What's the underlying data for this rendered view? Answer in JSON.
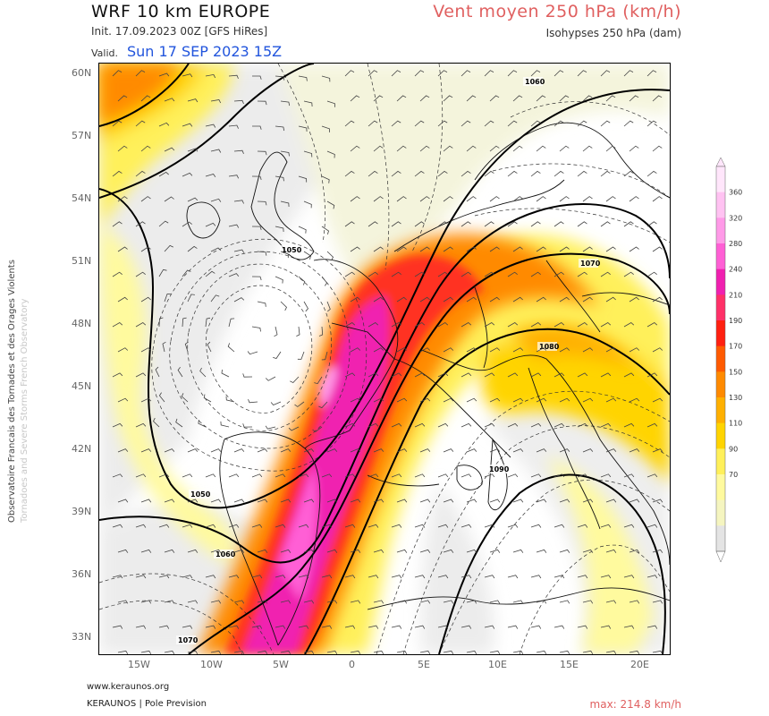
{
  "header": {
    "title": "WRF 10 km EUROPE",
    "init": "Init.   17.09.2023 00Z [GFS HiRes]",
    "valid_label": "Valid.",
    "valid_date": "Sun 17 SEP 2023 15Z",
    "product": "Vent moyen 250 hPa (km/h)",
    "isohypses": "Isohypses 250 hPa (dam)"
  },
  "side_credit": {
    "line1": "Observatoire Francais des Tornades et des Orages Violents",
    "line2": "Tornadoes and Severe Storms French Observatory"
  },
  "axes": {
    "lat_labels": [
      "60N",
      "57N",
      "54N",
      "51N",
      "48N",
      "45N",
      "42N",
      "39N",
      "36N",
      "33N"
    ],
    "lon_labels": [
      "15W",
      "10W",
      "5W",
      "0",
      "5E",
      "10E",
      "15E",
      "20E"
    ]
  },
  "isohypse_labels": [
    "1060",
    "1050",
    "1070",
    "1080",
    "1090",
    "1050",
    "1060",
    "1070"
  ],
  "colorbar": {
    "ticks": [
      "360",
      "320",
      "280",
      "240",
      "210",
      "190",
      "170",
      "150",
      "130",
      "110",
      "90",
      "70"
    ],
    "colors": [
      "#ffe6fb",
      "#ffc2f2",
      "#ff9ae8",
      "#ff5fd5",
      "#f020b0",
      "#ff3068",
      "#ff2010",
      "#ff5a00",
      "#ff8a00",
      "#ffb000",
      "#ffd400",
      "#fff05a",
      "#fffa9e",
      "#f5f5c0",
      "#e4e4e4"
    ]
  },
  "footer": {
    "url": "www.keraunos.org",
    "org": "KERAUNOS | Pole Prevision",
    "max_wind": "max: 214.8 km/h"
  }
}
